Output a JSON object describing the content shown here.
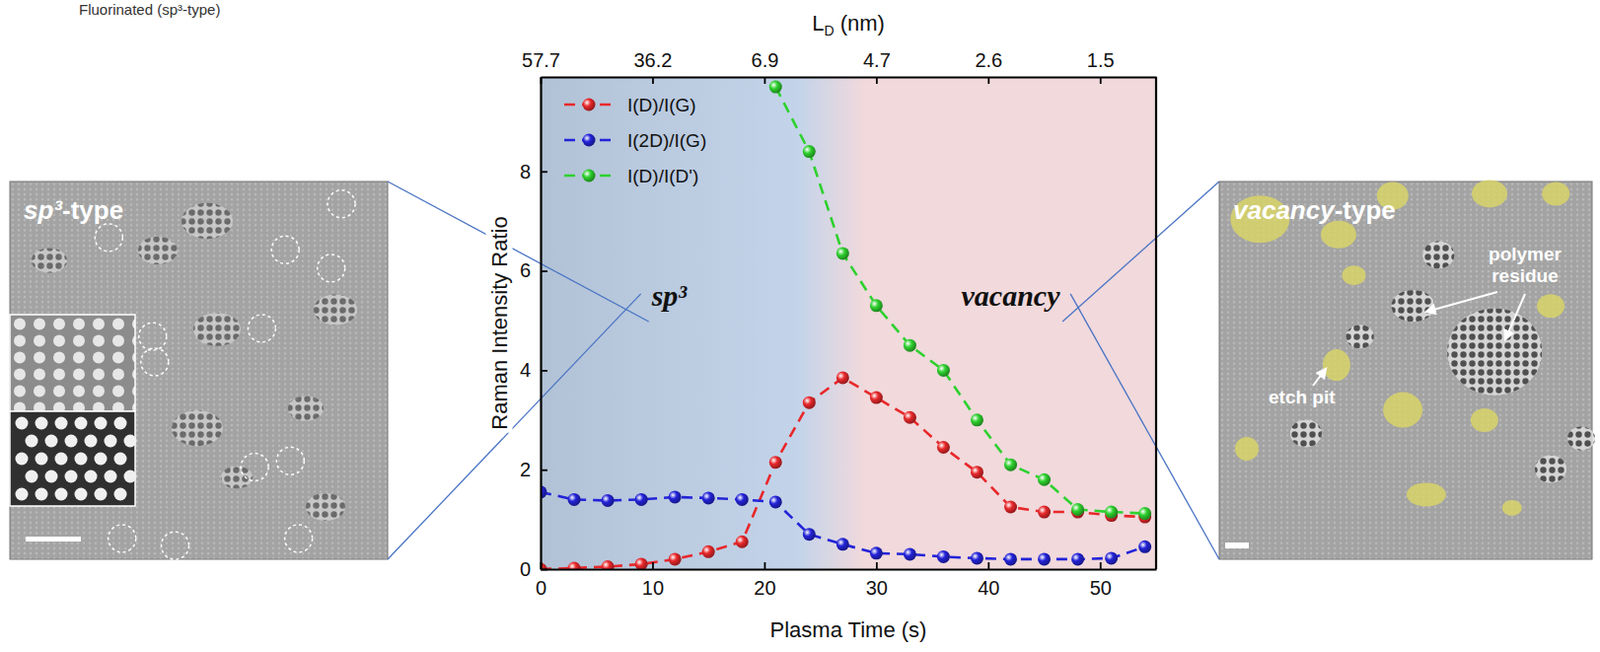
{
  "chart_data": {
    "type": "line",
    "caption": "Fluorinated (sp³-type)",
    "x_label": "Plasma Time (s)",
    "y_label": "Raman Intensity Ratio",
    "x2_label": "LD (nm)",
    "x": [
      0,
      3,
      6,
      9,
      12,
      15,
      18,
      21,
      24,
      27,
      30,
      33,
      36,
      39,
      42,
      45,
      48,
      51,
      54
    ],
    "xlim": [
      0,
      55
    ],
    "xticks": [
      0,
      10,
      20,
      30,
      40,
      50
    ],
    "x2ticks": [
      {
        "value": 0,
        "label": "57.7"
      },
      {
        "value": 10,
        "label": "36.2"
      },
      {
        "value": 20,
        "label": "6.9"
      },
      {
        "value": 30,
        "label": "4.7"
      },
      {
        "value": 40,
        "label": "2.6"
      },
      {
        "value": 50,
        "label": "1.5"
      }
    ],
    "ylim": [
      0,
      9.9
    ],
    "yticks": [
      0,
      2,
      4,
      6,
      8
    ],
    "legend": "top-left",
    "marker": "circle",
    "line_style": "dashed",
    "series": [
      {
        "name": "I(D)/I(G)",
        "color": "#e8282b",
        "values": [
          0.0,
          0.02,
          0.05,
          0.1,
          0.2,
          0.35,
          0.55,
          2.15,
          3.35,
          3.85,
          3.45,
          3.05,
          2.45,
          1.95,
          1.25,
          1.15,
          1.15,
          1.08,
          1.05
        ]
      },
      {
        "name": "I(2D)/I(G)",
        "color": "#2323d8",
        "values": [
          1.55,
          1.4,
          1.38,
          1.4,
          1.45,
          1.43,
          1.4,
          1.35,
          0.7,
          0.5,
          0.32,
          0.3,
          0.25,
          0.22,
          0.2,
          0.2,
          0.2,
          0.22,
          0.45
        ]
      },
      {
        "name": "I(D)/I(D')",
        "color": "#2ed12e",
        "values": [
          null,
          null,
          null,
          null,
          null,
          null,
          null,
          9.7,
          8.4,
          6.35,
          5.3,
          4.5,
          4.0,
          3.0,
          2.1,
          1.8,
          1.2,
          1.15,
          1.12
        ]
      }
    ],
    "regions": [
      {
        "label": "sp³",
        "start": 0,
        "end": 23,
        "color": "#c3d4ea"
      },
      {
        "label": "vacancy",
        "start": 29,
        "end": 55,
        "color": "#f1d9dc"
      }
    ],
    "panels": [
      {
        "title": "sp³-type"
      },
      {
        "title": "vacancy-type",
        "labels": [
          "polymer residue",
          "etch pit"
        ]
      }
    ]
  }
}
